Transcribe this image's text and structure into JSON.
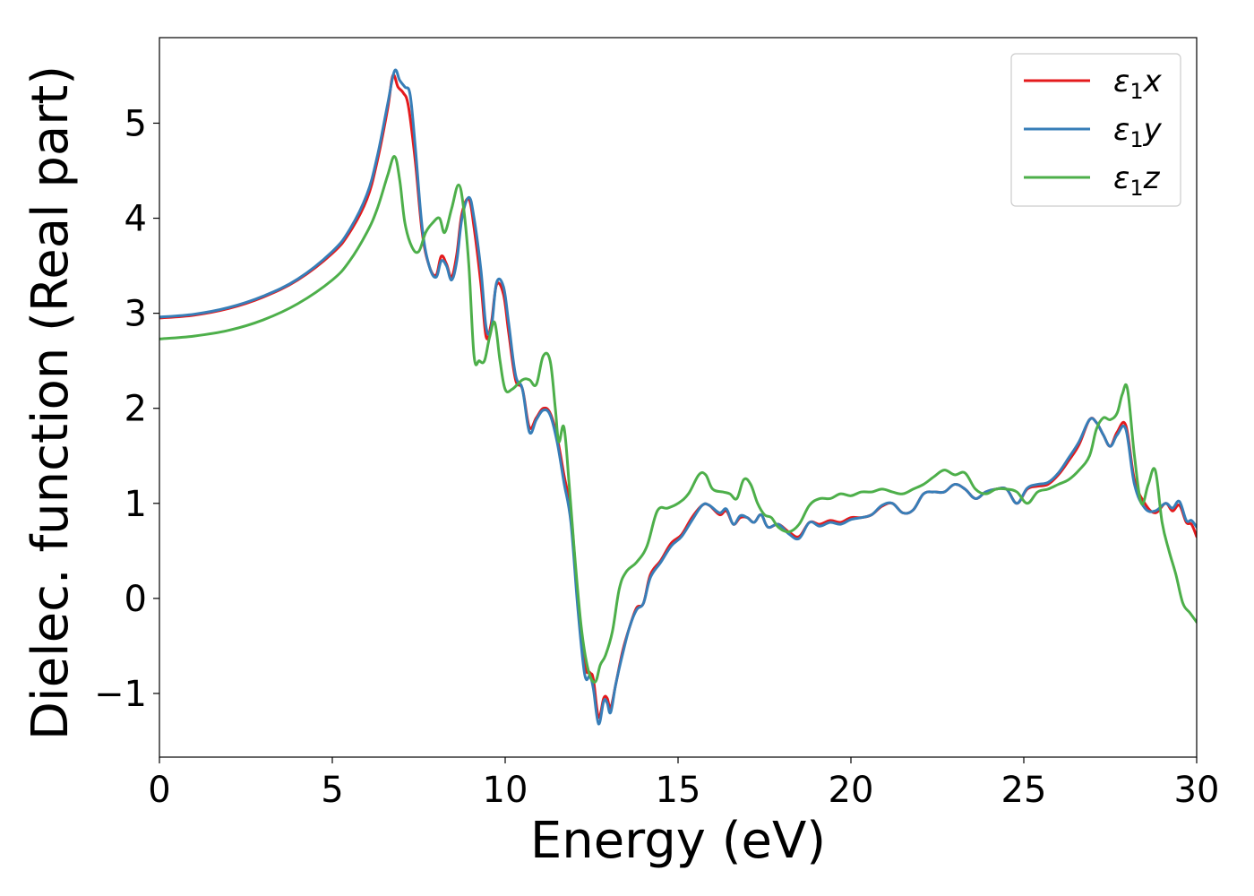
{
  "chart_data": {
    "type": "line",
    "title": "",
    "xlabel": "Energy (eV)",
    "ylabel": "Dielec. function (Real part)",
    "xlim": [
      0,
      30
    ],
    "ylim": [
      -1.67,
      5.9
    ],
    "xticks": [
      0,
      5,
      10,
      15,
      20,
      25,
      30
    ],
    "yticks": [
      -1,
      0,
      1,
      2,
      3,
      4,
      5
    ],
    "xtick_labels": [
      "0",
      "5",
      "10",
      "15",
      "20",
      "25",
      "30"
    ],
    "ytick_labels": [
      "−1",
      "0",
      "1",
      "2",
      "3",
      "4",
      "5"
    ],
    "grid": false,
    "legend_position": "top-right",
    "series": [
      {
        "name": "ε1x",
        "legend_symbol": "ε",
        "legend_subscript": "1",
        "legend_suffix": "x",
        "color": "#e41a1c",
        "x": [
          0,
          1,
          2,
          3,
          4,
          5,
          5.5,
          6,
          6.3,
          6.6,
          6.75,
          6.9,
          7.05,
          7.2,
          7.4,
          7.6,
          7.8,
          8.0,
          8.15,
          8.3,
          8.45,
          8.6,
          8.75,
          8.95,
          9.1,
          9.3,
          9.45,
          9.6,
          9.75,
          9.95,
          10.1,
          10.3,
          10.5,
          10.7,
          10.9,
          11.1,
          11.3,
          11.5,
          11.7,
          11.9,
          12.1,
          12.3,
          12.45,
          12.55,
          12.7,
          12.85,
          12.95,
          13.05,
          13.2,
          13.4,
          13.6,
          13.8,
          14.0,
          14.2,
          14.5,
          14.8,
          15.1,
          15.4,
          15.7,
          15.9,
          16.2,
          16.4,
          16.6,
          16.8,
          17.0,
          17.2,
          17.4,
          17.6,
          17.9,
          18.2,
          18.5,
          18.8,
          19.1,
          19.4,
          19.7,
          20.0,
          20.3,
          20.6,
          20.9,
          21.2,
          21.5,
          21.8,
          22.1,
          22.4,
          22.7,
          23.0,
          23.3,
          23.6,
          23.9,
          24.2,
          24.5,
          24.8,
          25.1,
          25.4,
          25.7,
          26.0,
          26.3,
          26.6,
          26.9,
          27.1,
          27.3,
          27.5,
          27.7,
          27.95,
          28.2,
          28.5,
          28.8,
          29.1,
          29.3,
          29.5,
          29.7,
          29.85,
          30.0
        ],
        "y": [
          2.95,
          2.98,
          3.05,
          3.17,
          3.35,
          3.63,
          3.85,
          4.2,
          4.6,
          5.15,
          5.5,
          5.38,
          5.32,
          5.18,
          4.6,
          3.85,
          3.5,
          3.4,
          3.6,
          3.52,
          3.38,
          3.62,
          4.05,
          4.2,
          3.9,
          3.3,
          2.75,
          2.9,
          3.3,
          3.2,
          2.8,
          2.3,
          2.2,
          1.8,
          1.9,
          2.0,
          1.95,
          1.7,
          1.3,
          0.9,
          0.0,
          -0.7,
          -0.78,
          -0.85,
          -1.25,
          -1.05,
          -1.05,
          -1.15,
          -0.9,
          -0.55,
          -0.3,
          -0.1,
          -0.05,
          0.25,
          0.4,
          0.58,
          0.67,
          0.85,
          0.98,
          0.98,
          0.88,
          0.92,
          0.78,
          0.85,
          0.85,
          0.8,
          0.88,
          0.75,
          0.78,
          0.7,
          0.65,
          0.8,
          0.78,
          0.82,
          0.8,
          0.85,
          0.85,
          0.88,
          0.97,
          1.0,
          0.9,
          0.93,
          1.1,
          1.12,
          1.12,
          1.2,
          1.15,
          1.05,
          1.12,
          1.15,
          1.15,
          1.0,
          1.15,
          1.18,
          1.2,
          1.3,
          1.45,
          1.62,
          1.88,
          1.85,
          1.72,
          1.6,
          1.75,
          1.82,
          1.25,
          1.0,
          0.9,
          1.0,
          0.92,
          0.98,
          0.8,
          0.78,
          0.65
        ]
      },
      {
        "name": "ε1y",
        "legend_symbol": "ε",
        "legend_subscript": "1",
        "legend_suffix": "y",
        "color": "#377eb8",
        "x": [
          0,
          1,
          2,
          3,
          4,
          5,
          5.5,
          6,
          6.3,
          6.6,
          6.8,
          6.95,
          7.1,
          7.25,
          7.4,
          7.6,
          7.8,
          8.0,
          8.15,
          8.3,
          8.45,
          8.6,
          8.75,
          8.95,
          9.1,
          9.3,
          9.45,
          9.6,
          9.75,
          9.95,
          10.1,
          10.3,
          10.5,
          10.7,
          10.9,
          11.1,
          11.3,
          11.5,
          11.7,
          11.9,
          12.1,
          12.3,
          12.45,
          12.55,
          12.7,
          12.85,
          12.95,
          13.05,
          13.2,
          13.4,
          13.6,
          13.8,
          14.0,
          14.2,
          14.5,
          14.8,
          15.1,
          15.4,
          15.7,
          15.9,
          16.2,
          16.4,
          16.6,
          16.8,
          17.0,
          17.2,
          17.4,
          17.6,
          17.9,
          18.2,
          18.5,
          18.8,
          19.1,
          19.4,
          19.7,
          20.0,
          20.3,
          20.6,
          20.9,
          21.2,
          21.5,
          21.8,
          22.1,
          22.4,
          22.7,
          23.0,
          23.3,
          23.6,
          23.9,
          24.2,
          24.5,
          24.8,
          25.1,
          25.4,
          25.7,
          26.0,
          26.3,
          26.6,
          26.9,
          27.1,
          27.3,
          27.5,
          27.7,
          27.95,
          28.2,
          28.5,
          28.8,
          29.1,
          29.3,
          29.5,
          29.7,
          29.85,
          30.0
        ],
        "y": [
          2.96,
          2.99,
          3.06,
          3.18,
          3.36,
          3.65,
          3.88,
          4.25,
          4.65,
          5.2,
          5.55,
          5.45,
          5.38,
          5.3,
          4.75,
          3.9,
          3.5,
          3.38,
          3.55,
          3.5,
          3.35,
          3.55,
          4.0,
          4.22,
          4.0,
          3.45,
          2.85,
          2.85,
          3.32,
          3.28,
          2.9,
          2.35,
          2.2,
          1.75,
          1.88,
          1.98,
          1.93,
          1.65,
          1.22,
          0.8,
          -0.1,
          -0.8,
          -0.82,
          -0.95,
          -1.32,
          -1.08,
          -1.1,
          -1.2,
          -0.9,
          -0.58,
          -0.3,
          -0.12,
          -0.05,
          0.22,
          0.38,
          0.55,
          0.65,
          0.82,
          0.98,
          0.98,
          0.9,
          0.94,
          0.78,
          0.87,
          0.85,
          0.8,
          0.88,
          0.75,
          0.78,
          0.68,
          0.63,
          0.8,
          0.76,
          0.8,
          0.78,
          0.83,
          0.85,
          0.88,
          0.98,
          1.0,
          0.9,
          0.93,
          1.1,
          1.12,
          1.12,
          1.2,
          1.15,
          1.05,
          1.12,
          1.15,
          1.15,
          1.0,
          1.16,
          1.2,
          1.22,
          1.32,
          1.48,
          1.65,
          1.88,
          1.85,
          1.72,
          1.6,
          1.72,
          1.78,
          1.2,
          0.95,
          0.92,
          1.0,
          0.95,
          1.02,
          0.82,
          0.82,
          0.75
        ]
      },
      {
        "name": "ε1z",
        "legend_symbol": "ε",
        "legend_subscript": "1",
        "legend_suffix": "z",
        "color": "#4daf4a",
        "x": [
          0,
          1,
          2,
          3,
          4,
          5,
          5.5,
          6,
          6.3,
          6.6,
          6.8,
          6.95,
          7.1,
          7.3,
          7.5,
          7.7,
          7.9,
          8.1,
          8.25,
          8.45,
          8.65,
          8.8,
          8.95,
          9.1,
          9.25,
          9.4,
          9.55,
          9.7,
          9.85,
          10.0,
          10.2,
          10.5,
          10.7,
          10.9,
          11.1,
          11.3,
          11.45,
          11.55,
          11.7,
          11.85,
          12.0,
          12.2,
          12.4,
          12.6,
          12.75,
          12.9,
          13.1,
          13.3,
          13.5,
          13.8,
          14.1,
          14.4,
          14.7,
          15.0,
          15.3,
          15.6,
          15.8,
          16.0,
          16.3,
          16.5,
          16.7,
          16.9,
          17.1,
          17.3,
          17.5,
          17.7,
          17.9,
          18.2,
          18.5,
          18.8,
          19.1,
          19.4,
          19.7,
          20.0,
          20.3,
          20.6,
          20.9,
          21.2,
          21.5,
          21.8,
          22.1,
          22.4,
          22.7,
          23.0,
          23.3,
          23.6,
          23.9,
          24.2,
          24.5,
          24.8,
          25.1,
          25.4,
          25.7,
          26.0,
          26.3,
          26.6,
          26.9,
          27.1,
          27.3,
          27.5,
          27.7,
          27.85,
          28.0,
          28.2,
          28.4,
          28.6,
          28.8,
          29.0,
          29.2,
          29.4,
          29.6,
          29.8,
          30.0
        ],
        "y": [
          2.73,
          2.76,
          2.82,
          2.93,
          3.1,
          3.35,
          3.55,
          3.85,
          4.1,
          4.45,
          4.65,
          4.4,
          3.95,
          3.7,
          3.65,
          3.85,
          3.95,
          4.0,
          3.85,
          4.1,
          4.35,
          4.1,
          3.5,
          2.55,
          2.5,
          2.5,
          2.75,
          2.9,
          2.5,
          2.2,
          2.2,
          2.3,
          2.3,
          2.25,
          2.55,
          2.5,
          2.0,
          1.65,
          1.8,
          1.2,
          0.5,
          -0.3,
          -0.75,
          -0.88,
          -0.7,
          -0.6,
          -0.35,
          0.1,
          0.28,
          0.38,
          0.55,
          0.92,
          0.95,
          1.0,
          1.1,
          1.3,
          1.3,
          1.15,
          1.12,
          1.1,
          1.05,
          1.25,
          1.2,
          1.0,
          0.88,
          0.85,
          0.75,
          0.7,
          0.78,
          0.98,
          1.05,
          1.05,
          1.1,
          1.08,
          1.12,
          1.12,
          1.15,
          1.12,
          1.1,
          1.15,
          1.2,
          1.28,
          1.35,
          1.3,
          1.32,
          1.15,
          1.1,
          1.15,
          1.15,
          1.12,
          1.0,
          1.12,
          1.15,
          1.2,
          1.25,
          1.35,
          1.5,
          1.78,
          1.9,
          1.88,
          1.95,
          2.15,
          2.2,
          1.5,
          1.0,
          1.2,
          1.35,
          0.8,
          0.5,
          0.25,
          -0.05,
          -0.15,
          -0.25
        ]
      }
    ]
  }
}
